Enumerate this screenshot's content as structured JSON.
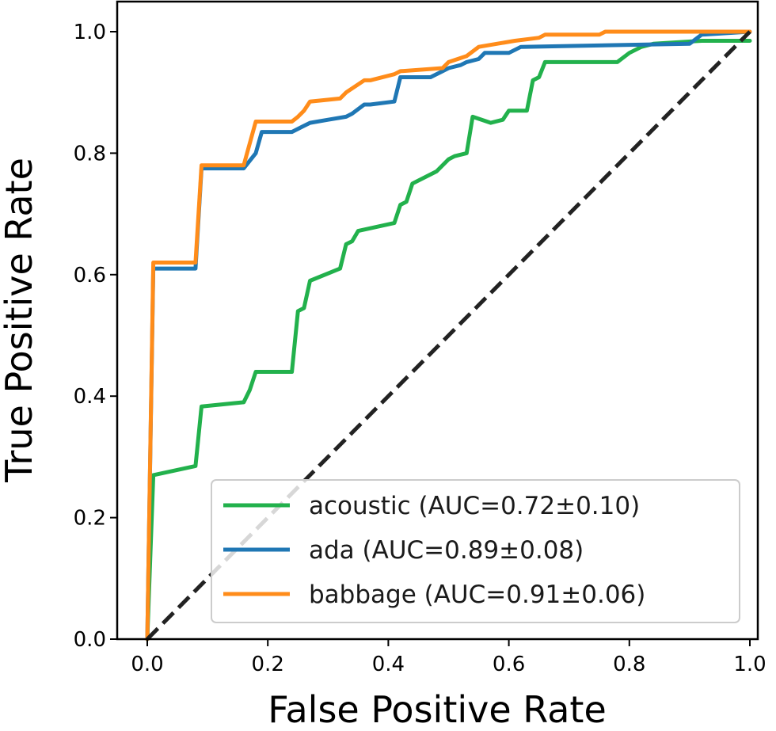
{
  "chart_data": {
    "type": "line",
    "title": "",
    "xlabel": "False Positive Rate",
    "ylabel": "True Positive Rate",
    "xlim": [
      0.0,
      1.0
    ],
    "ylim": [
      0.0,
      1.0
    ],
    "x_ticks": [
      "0.0",
      "0.2",
      "0.4",
      "0.6",
      "0.8",
      "1.0"
    ],
    "y_ticks": [
      "0.0",
      "0.2",
      "0.4",
      "0.6",
      "0.8",
      "1.0"
    ],
    "grid": false,
    "legend_position": "lower-right",
    "reference_line": {
      "style": "dashed",
      "color": "#222222",
      "from": [
        0.0,
        0.0
      ],
      "to": [
        1.0,
        1.0
      ]
    },
    "series": [
      {
        "name": "acoustic (AUC=0.72±0.10)",
        "color": "#22b14c",
        "x": [
          0.0,
          0.01,
          0.08,
          0.09,
          0.16,
          0.17,
          0.18,
          0.24,
          0.25,
          0.26,
          0.27,
          0.32,
          0.33,
          0.34,
          0.35,
          0.41,
          0.42,
          0.43,
          0.44,
          0.48,
          0.5,
          0.51,
          0.53,
          0.54,
          0.57,
          0.59,
          0.6,
          0.63,
          0.64,
          0.65,
          0.66,
          0.78,
          0.8,
          0.82,
          0.84,
          0.92,
          1.0
        ],
        "y": [
          0.0,
          0.27,
          0.285,
          0.383,
          0.39,
          0.41,
          0.44,
          0.44,
          0.54,
          0.545,
          0.59,
          0.61,
          0.65,
          0.655,
          0.672,
          0.685,
          0.715,
          0.72,
          0.75,
          0.77,
          0.79,
          0.795,
          0.8,
          0.86,
          0.85,
          0.855,
          0.87,
          0.87,
          0.92,
          0.925,
          0.95,
          0.95,
          0.965,
          0.975,
          0.98,
          0.985,
          0.985
        ]
      },
      {
        "name": "ada (AUC=0.89±0.08)",
        "color": "#1f77b4",
        "x": [
          0.0,
          0.01,
          0.08,
          0.09,
          0.16,
          0.18,
          0.19,
          0.24,
          0.26,
          0.27,
          0.3,
          0.33,
          0.34,
          0.36,
          0.37,
          0.41,
          0.42,
          0.47,
          0.49,
          0.5,
          0.52,
          0.53,
          0.55,
          0.56,
          0.6,
          0.62,
          0.9,
          0.92,
          1.0
        ],
        "y": [
          0.0,
          0.61,
          0.61,
          0.775,
          0.775,
          0.8,
          0.835,
          0.835,
          0.845,
          0.85,
          0.855,
          0.86,
          0.865,
          0.88,
          0.88,
          0.885,
          0.925,
          0.925,
          0.935,
          0.94,
          0.945,
          0.95,
          0.955,
          0.965,
          0.965,
          0.975,
          0.98,
          0.995,
          1.0
        ]
      },
      {
        "name": "babbage (AUC=0.91±0.06)",
        "color": "#ff8c1a",
        "x": [
          0.0,
          0.01,
          0.08,
          0.09,
          0.16,
          0.18,
          0.24,
          0.25,
          0.26,
          0.27,
          0.32,
          0.33,
          0.36,
          0.37,
          0.41,
          0.42,
          0.49,
          0.5,
          0.53,
          0.55,
          0.58,
          0.61,
          0.65,
          0.66,
          0.75,
          0.76,
          0.92,
          1.0
        ],
        "y": [
          0.0,
          0.62,
          0.62,
          0.78,
          0.78,
          0.852,
          0.852,
          0.86,
          0.87,
          0.885,
          0.89,
          0.9,
          0.92,
          0.92,
          0.93,
          0.935,
          0.94,
          0.95,
          0.96,
          0.975,
          0.98,
          0.985,
          0.99,
          0.995,
          0.995,
          1.0,
          1.0,
          1.0
        ]
      }
    ]
  }
}
